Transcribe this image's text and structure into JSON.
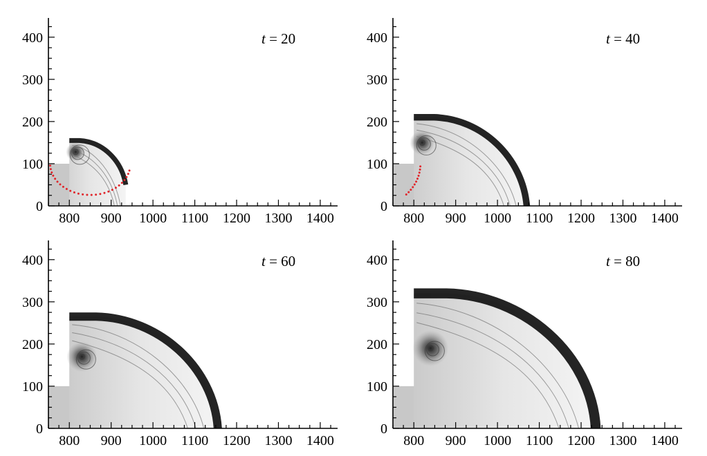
{
  "chart_data": [
    {
      "type": "image",
      "time_label": {
        "var": "t",
        "op": "=",
        "value": "20"
      },
      "x_ticks": [
        800,
        900,
        1000,
        1100,
        1200,
        1300,
        1400
      ],
      "y_ticks": [
        0,
        100,
        200,
        300,
        400
      ],
      "xlim": [
        750,
        1440
      ],
      "ylim": [
        0,
        440
      ],
      "inlet": {
        "x_end": 800,
        "y_top": 100
      },
      "shock": {
        "top_y": 155,
        "front_x": 935,
        "front_y_bottom": 50
      },
      "vortex": {
        "x": 815,
        "y": 128
      },
      "red_dotted_arc": true
    },
    {
      "type": "image",
      "time_label": {
        "var": "t",
        "op": "=",
        "value": "40"
      },
      "x_ticks": [
        800,
        900,
        1000,
        1100,
        1200,
        1300,
        1400
      ],
      "y_ticks": [
        0,
        100,
        200,
        300,
        400
      ],
      "xlim": [
        750,
        1440
      ],
      "ylim": [
        0,
        440
      ],
      "inlet": {
        "x_end": 800,
        "y_top": 100
      },
      "shock": {
        "top_y": 210,
        "front_x": 1070,
        "front_y_bottom": 0
      },
      "vortex": {
        "x": 820,
        "y": 150
      },
      "red_dotted_arc": true
    },
    {
      "type": "image",
      "time_label": {
        "var": "t",
        "op": "=",
        "value": "60"
      },
      "x_ticks": [
        800,
        900,
        1000,
        1100,
        1200,
        1300,
        1400
      ],
      "y_ticks": [
        0,
        100,
        200,
        300,
        400
      ],
      "xlim": [
        750,
        1440
      ],
      "ylim": [
        0,
        440
      ],
      "inlet": {
        "x_end": 800,
        "y_top": 100
      },
      "shock": {
        "top_y": 265,
        "front_x": 1155,
        "front_y_bottom": 0
      },
      "vortex": {
        "x": 830,
        "y": 170
      },
      "red_dotted_arc": false
    },
    {
      "type": "image",
      "time_label": {
        "var": "t",
        "op": "=",
        "value": "80"
      },
      "x_ticks": [
        800,
        900,
        1000,
        1100,
        1200,
        1300,
        1400
      ],
      "y_ticks": [
        0,
        100,
        200,
        300,
        400
      ],
      "xlim": [
        750,
        1440
      ],
      "ylim": [
        0,
        440
      ],
      "inlet": {
        "x_end": 800,
        "y_top": 100
      },
      "shock": {
        "top_y": 320,
        "front_x": 1235,
        "front_y_bottom": 0
      },
      "vortex": {
        "x": 840,
        "y": 190
      },
      "red_dotted_arc": false
    }
  ],
  "colors": {
    "axis": "#000000",
    "shock": "#111111",
    "dots": "#e0262b",
    "field": "#cfcfcf"
  }
}
